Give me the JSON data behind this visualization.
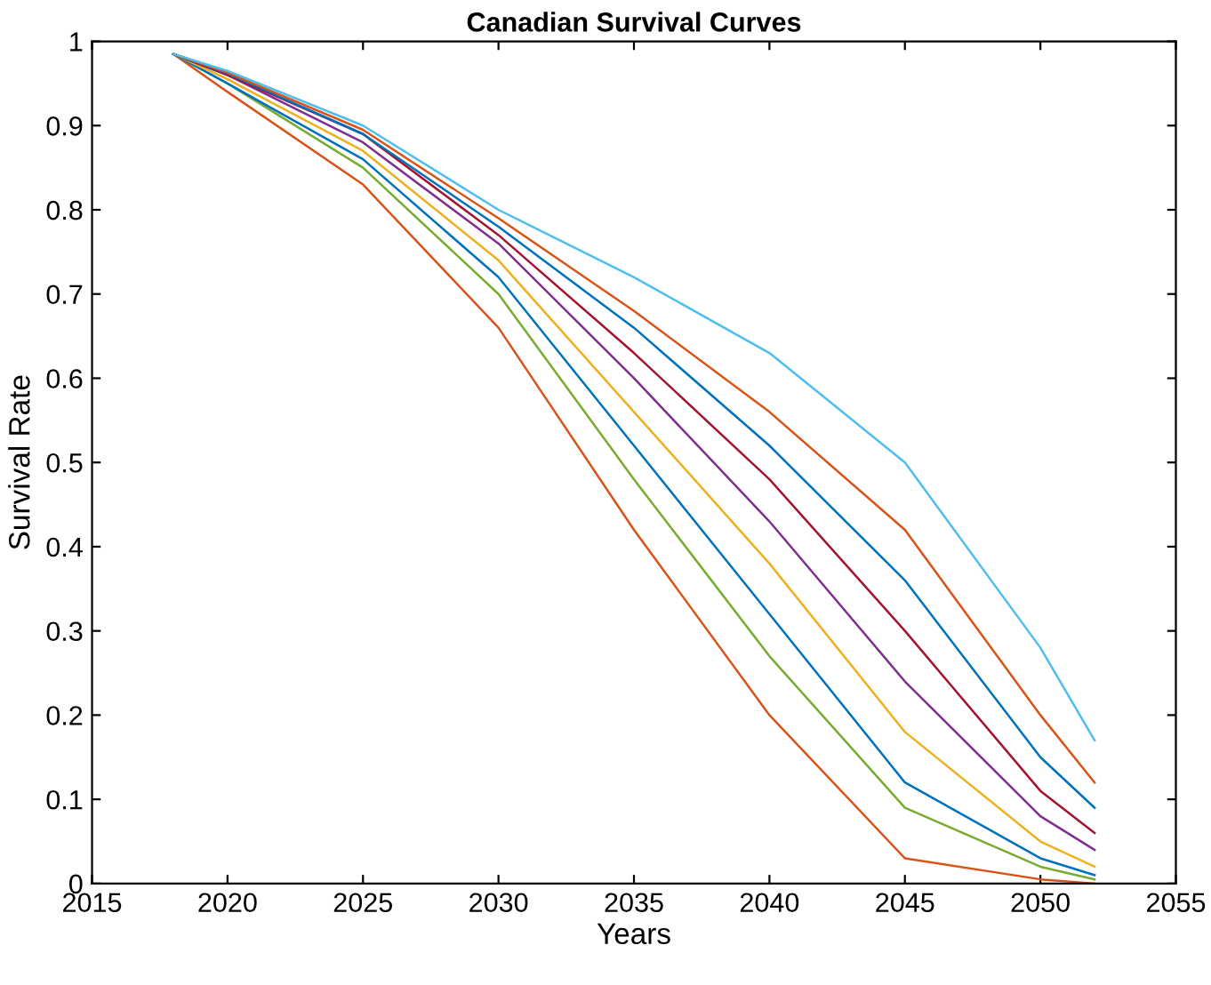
{
  "chart_data": {
    "type": "line",
    "title": "Canadian Survival Curves",
    "xlabel": "Years",
    "ylabel": "Survival Rate",
    "x": [
      2018,
      2020,
      2025,
      2030,
      2035,
      2040,
      2045,
      2050,
      2052
    ],
    "xlim": [
      2015,
      2055
    ],
    "xticks": [
      2015,
      2020,
      2025,
      2030,
      2035,
      2040,
      2045,
      2050,
      2055
    ],
    "ylim": [
      0,
      1
    ],
    "yticks": [
      0,
      0.1,
      0.2,
      0.3,
      0.4,
      0.5,
      0.6,
      0.7,
      0.8,
      0.9,
      1
    ],
    "line_style": "solid",
    "marker": "none",
    "series": [
      {
        "color": "#d95319",
        "values": [
          0.985,
          0.94,
          0.83,
          0.66,
          0.42,
          0.2,
          0.03,
          0.005,
          0
        ]
      },
      {
        "color": "#77ac30",
        "values": [
          0.985,
          0.95,
          0.85,
          0.7,
          0.48,
          0.27,
          0.09,
          0.02,
          0.005
        ]
      },
      {
        "color": "#0072bd",
        "values": [
          0.985,
          0.95,
          0.86,
          0.72,
          0.52,
          0.32,
          0.12,
          0.03,
          0.01
        ]
      },
      {
        "color": "#edb120",
        "values": [
          0.985,
          0.955,
          0.87,
          0.74,
          0.56,
          0.38,
          0.18,
          0.05,
          0.02
        ]
      },
      {
        "color": "#7e2f8e",
        "values": [
          0.985,
          0.96,
          0.88,
          0.76,
          0.6,
          0.43,
          0.24,
          0.08,
          0.04
        ]
      },
      {
        "color": "#a2142f",
        "values": [
          0.985,
          0.96,
          0.89,
          0.77,
          0.63,
          0.48,
          0.3,
          0.11,
          0.06
        ]
      },
      {
        "color": "#0072bd",
        "values": [
          0.985,
          0.962,
          0.89,
          0.78,
          0.66,
          0.52,
          0.36,
          0.15,
          0.09
        ]
      },
      {
        "color": "#d95319",
        "values": [
          0.985,
          0.963,
          0.895,
          0.79,
          0.68,
          0.56,
          0.42,
          0.2,
          0.12
        ]
      },
      {
        "color": "#4dbeee",
        "values": [
          0.985,
          0.965,
          0.9,
          0.8,
          0.72,
          0.63,
          0.5,
          0.28,
          0.17
        ]
      }
    ]
  }
}
